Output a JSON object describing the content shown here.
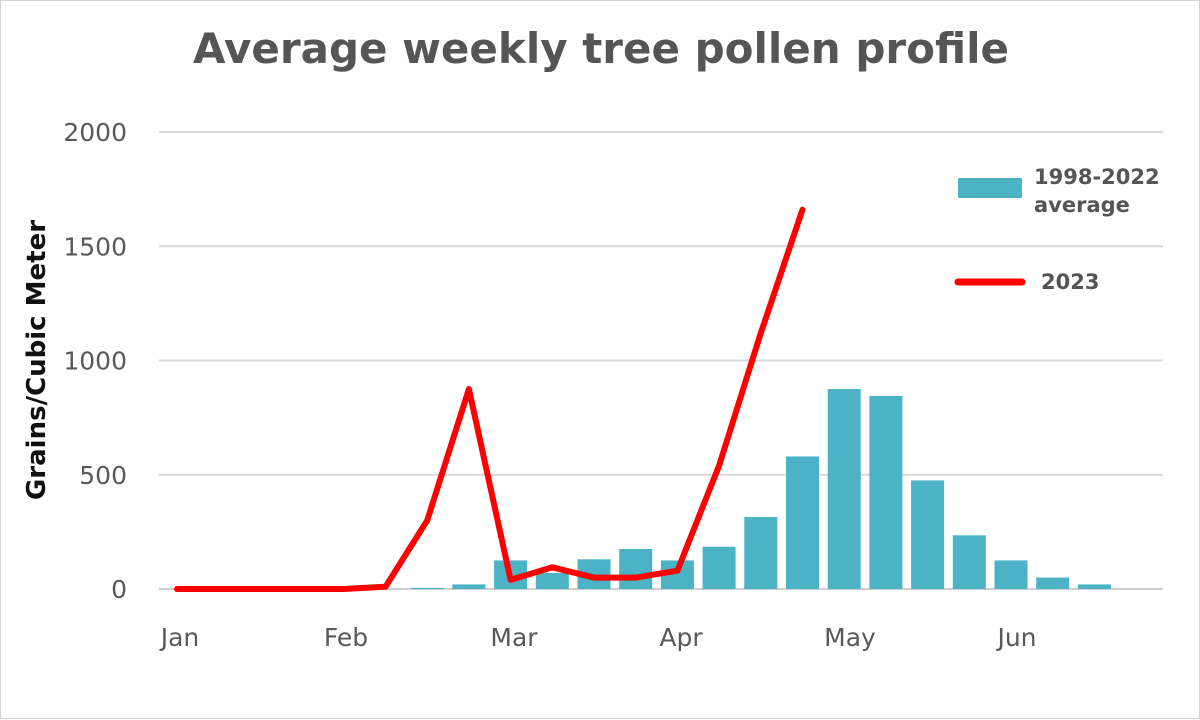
{
  "chart_data": {
    "type": "bar",
    "title": "Average weekly tree pollen profile",
    "xlabel": "",
    "ylabel": "Grains/Cubic Meter",
    "ylim": [
      0,
      2000
    ],
    "yticks": [
      "0",
      "500",
      "1000",
      "1500",
      "2000"
    ],
    "xticks": [
      "Jan",
      "Feb",
      "Mar",
      "Apr",
      "May",
      "Jun"
    ],
    "grid": true,
    "legend_position": "top-right",
    "colors": {
      "bars": "#4bb3c5",
      "line": "#ff0000",
      "grid": "#d9d9d9",
      "text": "#595959"
    },
    "series": [
      {
        "name": "1998-2022 average",
        "kind": "bar",
        "x": [
          6,
          7,
          8,
          9,
          10,
          11,
          12,
          13,
          14,
          15,
          16,
          17,
          18,
          19,
          20,
          21,
          22
        ],
        "values": [
          5,
          20,
          125,
          70,
          130,
          175,
          125,
          185,
          315,
          580,
          875,
          845,
          475,
          235,
          125,
          50,
          20
        ]
      },
      {
        "name": "2023",
        "kind": "line",
        "x": [
          0,
          1,
          2,
          3,
          4,
          5,
          6,
          7,
          8,
          9,
          10,
          11,
          12,
          13,
          14,
          15
        ],
        "values": [
          0,
          0,
          0,
          0,
          0,
          10,
          300,
          875,
          40,
          95,
          50,
          50,
          80,
          540,
          1120,
          1660
        ]
      }
    ]
  }
}
